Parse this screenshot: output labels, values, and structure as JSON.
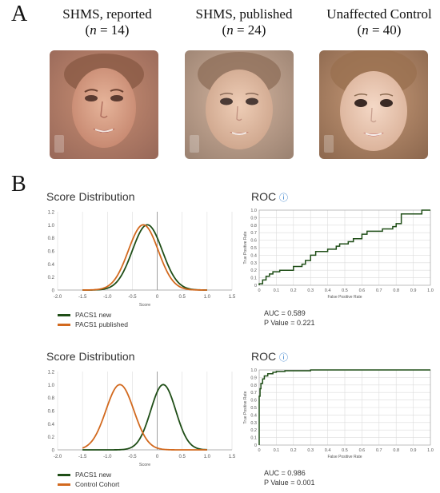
{
  "panels": {
    "a": "A",
    "b": "B"
  },
  "faces": [
    {
      "title": "SHMS, reported",
      "n_prefix": "(",
      "n_var": "n",
      "n_text": " = 14)"
    },
    {
      "title": "SHMS, published",
      "n_prefix": "(",
      "n_var": "n",
      "n_text": " = 24)"
    },
    {
      "title": "Unaffected Control",
      "n_prefix": "(",
      "n_var": "n",
      "n_text": " = 40)"
    }
  ],
  "colors": {
    "new": "#1f4e17",
    "published": "#d2691e",
    "grid": "#d8d8d8",
    "axis": "#999999"
  },
  "chart_data": [
    {
      "type": "line",
      "title": "Score Distribution",
      "xlabel": "Score",
      "xlim": [
        -2.0,
        1.5
      ],
      "ylim": [
        0,
        1.2
      ],
      "x_ticks": [
        "-2.0",
        "-1.5",
        "-1.0",
        "-0.5",
        "0",
        "0.5",
        "1.0",
        "1.5"
      ],
      "y_ticks": [
        "0",
        "0.2",
        "0.4",
        "0.6",
        "0.8",
        "1.0",
        "1.2"
      ],
      "series": [
        {
          "name": "PACS1 new",
          "color": "#1f4e17",
          "kind": "gaussian",
          "mean": -0.2,
          "sd": 0.3,
          "xrange": [
            -1.5,
            1.0
          ]
        },
        {
          "name": "PACS1 published",
          "color": "#d2691e",
          "kind": "gaussian",
          "mean": -0.28,
          "sd": 0.3,
          "xrange": [
            -1.5,
            1.0
          ]
        }
      ]
    },
    {
      "type": "line",
      "title": "ROC",
      "xlabel": "False Positive Rate",
      "ylabel": "True Positive Rate",
      "xlim": [
        0,
        1
      ],
      "ylim": [
        0,
        1
      ],
      "x_ticks": [
        "0",
        "0.1",
        "0.2",
        "0.3",
        "0.4",
        "0.5",
        "0.6",
        "0.7",
        "0.8",
        "0.9",
        "1.0"
      ],
      "y_ticks": [
        "0",
        "0.1",
        "0.2",
        "0.3",
        "0.4",
        "0.5",
        "0.6",
        "0.7",
        "0.8",
        "0.9",
        "1.0"
      ],
      "series": [
        {
          "color": "#1f4e17",
          "x": [
            0,
            0,
            0.02,
            0.02,
            0.04,
            0.04,
            0.06,
            0.06,
            0.08,
            0.08,
            0.12,
            0.12,
            0.2,
            0.2,
            0.25,
            0.25,
            0.27,
            0.27,
            0.3,
            0.3,
            0.33,
            0.33,
            0.4,
            0.4,
            0.45,
            0.45,
            0.47,
            0.47,
            0.52,
            0.52,
            0.55,
            0.55,
            0.6,
            0.6,
            0.63,
            0.63,
            0.72,
            0.72,
            0.78,
            0.78,
            0.8,
            0.8,
            0.83,
            0.83,
            0.95,
            0.95,
            1.0
          ],
          "y": [
            0,
            0.02,
            0.02,
            0.07,
            0.07,
            0.12,
            0.12,
            0.15,
            0.15,
            0.18,
            0.18,
            0.2,
            0.2,
            0.25,
            0.25,
            0.28,
            0.28,
            0.33,
            0.33,
            0.4,
            0.4,
            0.45,
            0.45,
            0.48,
            0.48,
            0.52,
            0.52,
            0.55,
            0.55,
            0.58,
            0.58,
            0.62,
            0.62,
            0.68,
            0.68,
            0.72,
            0.72,
            0.75,
            0.75,
            0.78,
            0.78,
            0.82,
            0.82,
            0.95,
            0.95,
            1.0,
            1.0
          ]
        }
      ],
      "auc_text": "AUC = 0.589",
      "p_text": "P Value = 0.221"
    },
    {
      "type": "line",
      "title": "Score Distribution",
      "xlabel": "Score",
      "xlim": [
        -2.0,
        1.5
      ],
      "ylim": [
        0,
        1.2
      ],
      "x_ticks": [
        "-2.0",
        "-1.5",
        "-1.0",
        "-0.5",
        "0",
        "0.5",
        "1.0",
        "1.5"
      ],
      "y_ticks": [
        "0",
        "0.2",
        "0.4",
        "0.6",
        "0.8",
        "1.0",
        "1.2"
      ],
      "series": [
        {
          "name": "PACS1 new",
          "color": "#1f4e17",
          "kind": "gaussian",
          "mean": 0.12,
          "sd": 0.25,
          "xrange": [
            -1.5,
            1.0
          ]
        },
        {
          "name": "Control Cohort",
          "color": "#d2691e",
          "kind": "gaussian",
          "mean": -0.75,
          "sd": 0.28,
          "xrange": [
            -1.5,
            1.0
          ]
        }
      ]
    },
    {
      "type": "line",
      "title": "ROC",
      "xlabel": "False Positive Rate",
      "ylabel": "True Positive Rate",
      "xlim": [
        0,
        1
      ],
      "ylim": [
        0,
        1
      ],
      "x_ticks": [
        "0",
        "0.1",
        "0.2",
        "0.3",
        "0.4",
        "0.5",
        "0.6",
        "0.7",
        "0.8",
        "0.9",
        "1.0"
      ],
      "y_ticks": [
        "0",
        "0.1",
        "0.2",
        "0.3",
        "0.4",
        "0.5",
        "0.6",
        "0.7",
        "0.8",
        "0.9",
        "1.0"
      ],
      "series": [
        {
          "color": "#1f4e17",
          "x": [
            0,
            0,
            0.005,
            0.005,
            0.01,
            0.01,
            0.02,
            0.02,
            0.03,
            0.03,
            0.05,
            0.05,
            0.08,
            0.08,
            0.1,
            0.1,
            0.15,
            0.15,
            0.3,
            0.3,
            1.0
          ],
          "y": [
            0,
            0.65,
            0.65,
            0.75,
            0.75,
            0.82,
            0.82,
            0.88,
            0.88,
            0.92,
            0.92,
            0.95,
            0.95,
            0.97,
            0.97,
            0.98,
            0.98,
            0.99,
            0.99,
            1.0,
            1.0
          ]
        }
      ],
      "auc_text": "AUC = 0.986",
      "p_text": "P Value = 0.001"
    }
  ]
}
